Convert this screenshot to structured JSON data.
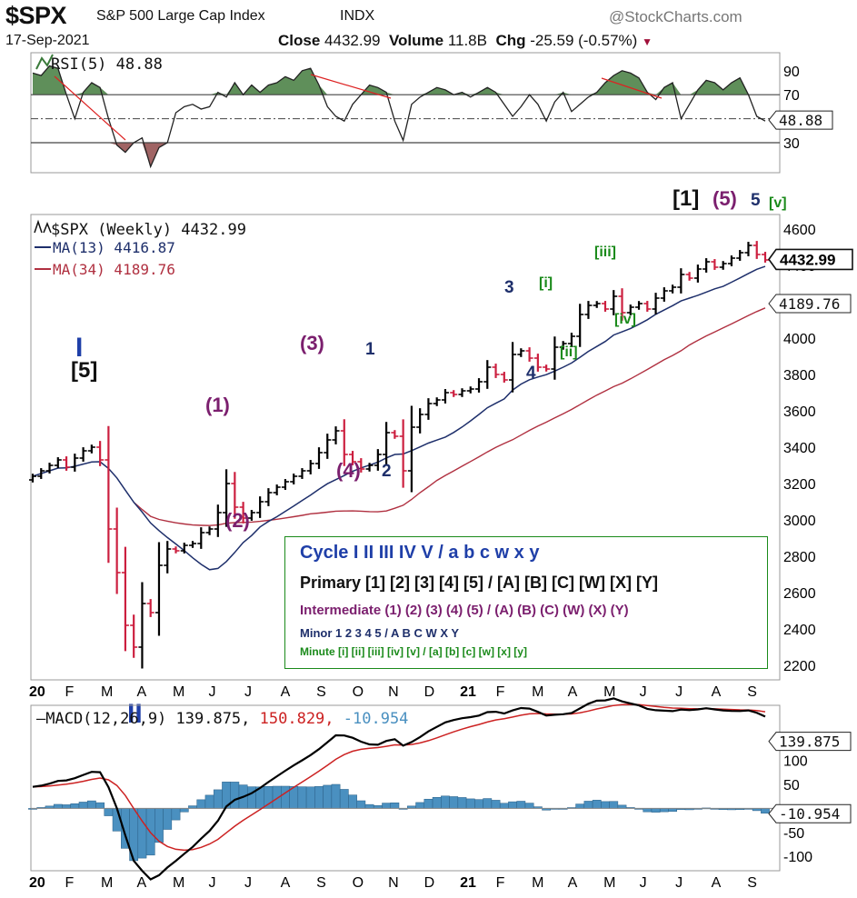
{
  "header": {
    "ticker": "$SPX",
    "index_name": "S&P 500 Large Cap Index",
    "exchange": "INDX",
    "watermark": "@StockCharts.com",
    "date": "17-Sep-2021",
    "close_label": "Close",
    "close_value": "4432.99",
    "volume_label": "Volume",
    "volume_value": "11.8B",
    "chg_label": "Chg",
    "chg_value": "-25.59 (-0.57%)"
  },
  "legend_box": {
    "cycle": "Cycle I II III IV V / a b c w x y",
    "primary": "Primary [1] [2] [3] [4] [5] / [A] [B] [C] [W] [X] [Y]",
    "intermediate": "Intermediate (1) (2) (3) (4) (5) / (A) (B) (C) (W) (X) (Y)",
    "minor": "Minor 1 2 3 4 5 / A B C W X Y",
    "minute": "Minute [i] [ii] [iii] [iv] [v] / [a] [b] [c] [w] [x] [y]"
  },
  "colors": {
    "up_bar": "#000000",
    "down_bar": "#cc1f3f",
    "ma13": "#1e2f6b",
    "ma34": "#b03040",
    "rsi_above": "#5f8f5a",
    "rsi_below": "#a06464",
    "macd_line": "#000000",
    "macd_signal": "#cc2222",
    "macd_hist": "#4a90c0",
    "annotation_red": "#dd2222",
    "cycle": "#1f3fa8",
    "primary": "#111111",
    "intermediate": "#7b1f6e",
    "minor": "#1e2f6b",
    "minute": "#1a8a1a"
  },
  "chart_data": [
    {
      "type": "line",
      "panel": "rsi",
      "title": "RSI(5) 48.88",
      "ylim": [
        5,
        105
      ],
      "ticks": [
        90,
        70,
        30
      ],
      "reference_lines": [
        70,
        50,
        30
      ],
      "last_value": "48.88",
      "values": [
        88,
        86,
        94,
        92,
        70,
        50,
        72,
        80,
        76,
        50,
        28,
        22,
        30,
        34,
        10,
        26,
        30,
        55,
        60,
        62,
        58,
        60,
        72,
        68,
        80,
        70,
        78,
        72,
        78,
        80,
        85,
        82,
        90,
        92,
        78,
        60,
        52,
        48,
        62,
        70,
        78,
        76,
        72,
        48,
        32,
        62,
        68,
        72,
        76,
        74,
        70,
        72,
        68,
        72,
        76,
        72,
        62,
        52,
        60,
        70,
        62,
        48,
        64,
        72,
        56,
        62,
        68,
        72,
        80,
        86,
        90,
        88,
        84,
        72,
        66,
        76,
        80,
        50,
        62,
        74,
        82,
        80,
        74,
        80,
        84,
        70,
        52,
        48
      ]
    },
    {
      "type": "candlestick",
      "panel": "price",
      "title": "$SPX (Weekly) 4432.99",
      "ylim": [
        2120,
        4680
      ],
      "ticks": [
        4600,
        4400,
        4200,
        4000,
        3800,
        3600,
        3400,
        3200,
        3000,
        2800,
        2600,
        2400,
        2200
      ],
      "x_labels": [
        "20",
        "F",
        "M",
        "A",
        "M",
        "J",
        "J",
        "A",
        "S",
        "O",
        "N",
        "D",
        "21",
        "F",
        "M",
        "A",
        "M",
        "J",
        "J",
        "A",
        "S"
      ],
      "closes": [
        3240,
        3270,
        3300,
        3330,
        3290,
        3340,
        3380,
        3400,
        3330,
        2950,
        2710,
        2420,
        2300,
        2540,
        2490,
        2750,
        2840,
        2830,
        2860,
        2870,
        2930,
        2950,
        3040,
        3200,
        3070,
        3010,
        3040,
        3100,
        3150,
        3180,
        3210,
        3240,
        3270,
        3310,
        3370,
        3440,
        3490,
        3360,
        3320,
        3280,
        3300,
        3360,
        3480,
        3460,
        3270,
        3510,
        3580,
        3640,
        3660,
        3700,
        3690,
        3710,
        3720,
        3760,
        3840,
        3800,
        3770,
        3910,
        3930,
        3890,
        3840,
        3830,
        3950,
        3970,
        4010,
        4130,
        4180,
        4190,
        4160,
        4230,
        4140,
        4170,
        4190,
        4160,
        4220,
        4260,
        4280,
        4350,
        4330,
        4380,
        4420,
        4390,
        4410,
        4440,
        4470,
        4510,
        4460,
        4430
      ],
      "series": [
        {
          "name": "MA(13) 4416.87",
          "last_value": "4416.87"
        },
        {
          "name": "MA(34) 4189.76",
          "last_value": "4189.76"
        }
      ],
      "last_close_label": "4432.99",
      "ma13_label": "4416.87",
      "ma34_label": "4189.76"
    },
    {
      "type": "line",
      "panel": "macd",
      "title": "MACD(12,26,9) 139.875, 150.829, -10.954",
      "title_parts": [
        "MACD(12,26,9)",
        "139.875,",
        "150.829,",
        "-10.954"
      ],
      "ylim": [
        -130,
        215
      ],
      "ticks": [
        100,
        50,
        -50,
        -100
      ],
      "macd_last": "139.875",
      "hist_last": "-10.954",
      "x_labels": [
        "20",
        "F",
        "M",
        "A",
        "M",
        "J",
        "J",
        "A",
        "S",
        "O",
        "N",
        "D",
        "21",
        "F",
        "M",
        "A",
        "M",
        "J",
        "J",
        "A",
        "S"
      ]
    }
  ],
  "wave_labels": [
    {
      "id": "cycle-I",
      "text": "I",
      "level": "cycle"
    },
    {
      "id": "primary-5",
      "text": "[5]",
      "level": "primary"
    },
    {
      "id": "int-1",
      "text": "(1)",
      "level": "intermediate"
    },
    {
      "id": "int-2",
      "text": "(2)",
      "level": "intermediate"
    },
    {
      "id": "int-3",
      "text": "(3)",
      "level": "intermediate"
    },
    {
      "id": "int-4",
      "text": "(4)",
      "level": "intermediate"
    },
    {
      "id": "minor-1",
      "text": "1",
      "level": "minor"
    },
    {
      "id": "minor-2",
      "text": "2",
      "level": "minor"
    },
    {
      "id": "minor-3",
      "text": "3",
      "level": "minor"
    },
    {
      "id": "minor-4",
      "text": "4",
      "level": "minor"
    },
    {
      "id": "minute-i",
      "text": "[i]",
      "level": "minute"
    },
    {
      "id": "minute-ii",
      "text": "[ii]",
      "level": "minute"
    },
    {
      "id": "minute-iii",
      "text": "[iii]",
      "level": "minute"
    },
    {
      "id": "minute-iv",
      "text": "[iv]",
      "level": "minute"
    },
    {
      "id": "primary-1",
      "text": "[1]",
      "level": "primary"
    },
    {
      "id": "int-5",
      "text": "(5)",
      "level": "intermediate"
    },
    {
      "id": "minor-5",
      "text": "5",
      "level": "minor"
    },
    {
      "id": "minute-v",
      "text": "[v]",
      "level": "minute"
    },
    {
      "id": "cycle-II",
      "text": "II",
      "level": "cycle"
    }
  ]
}
